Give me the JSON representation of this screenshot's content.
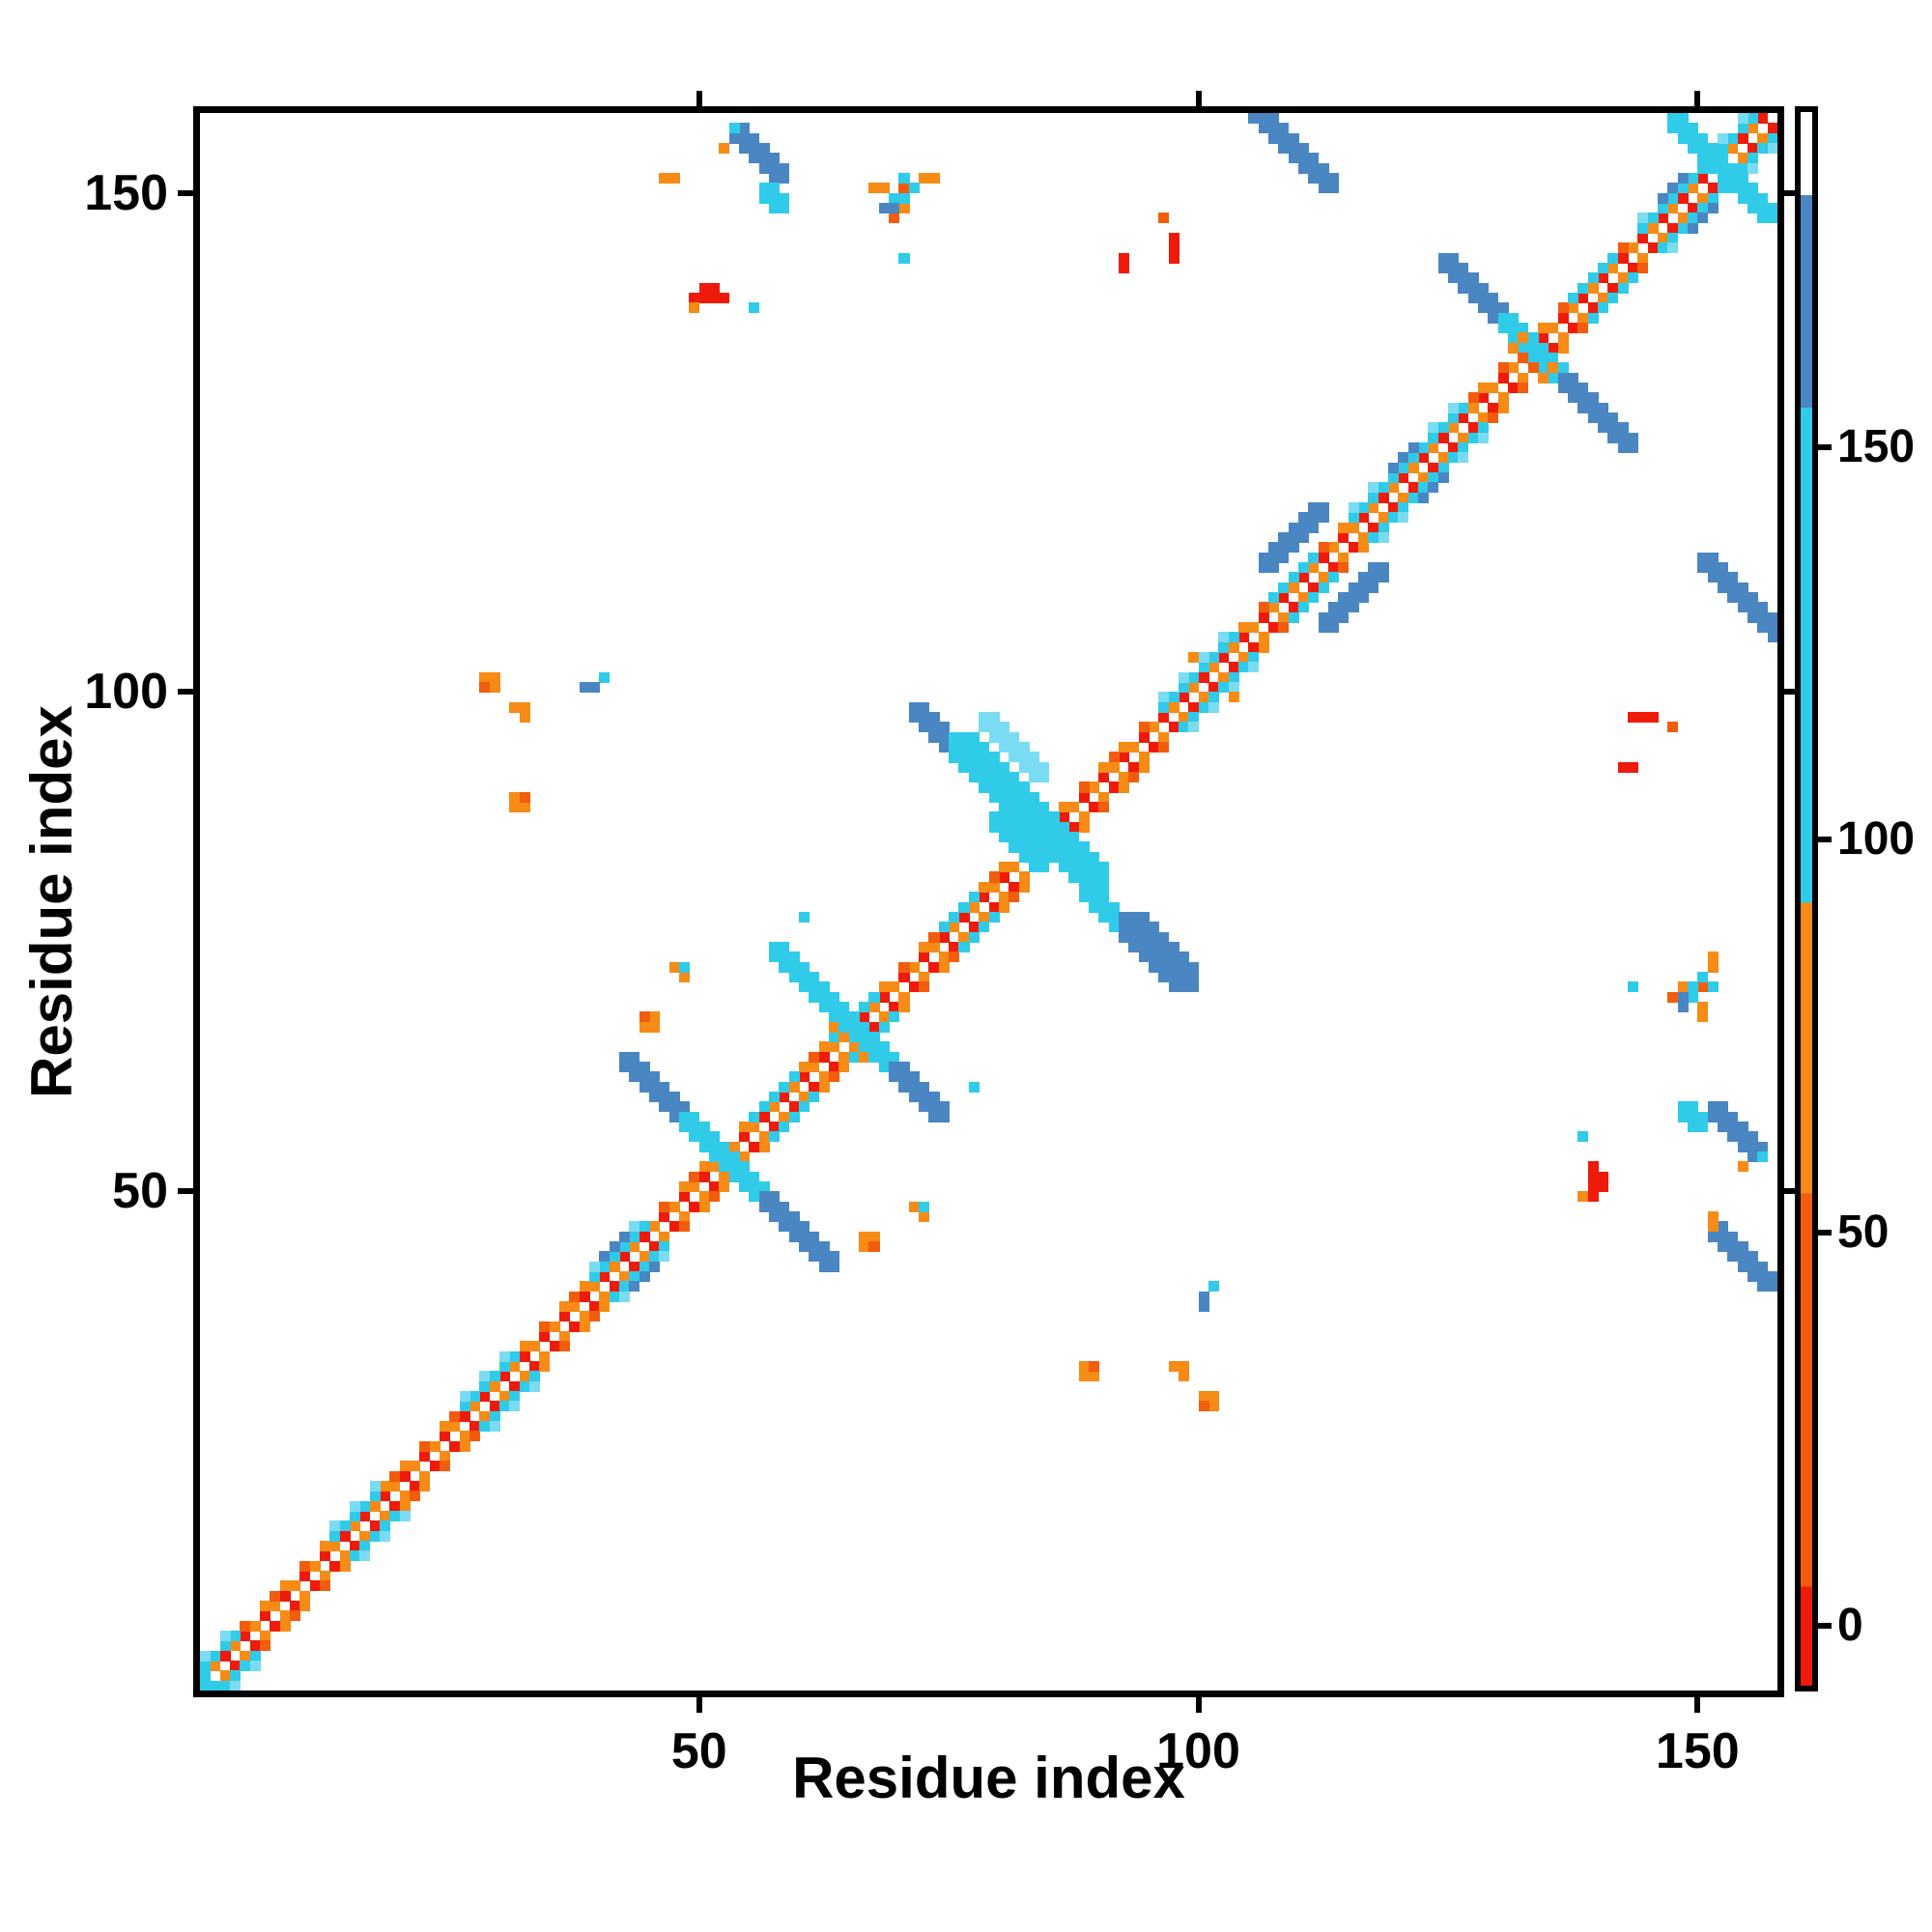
{
  "figure": {
    "xlabel": "Residue index",
    "ylabel": "Residue index"
  },
  "chart_data": {
    "type": "heatmap",
    "title": "",
    "xlabel": "Residue index",
    "ylabel": "Residue index",
    "n_residues": 158,
    "x_range": [
      0,
      158
    ],
    "y_range": [
      0,
      158
    ],
    "x_ticks": [
      50,
      100,
      150
    ],
    "y_ticks": [
      50,
      100,
      150
    ],
    "grid": false,
    "background": "#ffffff",
    "palette": {
      "red": "#ee1a0a",
      "dorange": "#f25c0d",
      "orange": "#f68b16",
      "cyan": "#2fcbe9",
      "lcyan": "#7adcf2",
      "steel": "#4a86c2",
      "white": "#ffffff"
    },
    "colorbar": {
      "min": -7.6,
      "max": 192.6,
      "ticks": [
        0,
        50,
        100,
        150
      ],
      "segments": [
        {
          "from": 182,
          "to": 192.6,
          "color": "white"
        },
        {
          "from": 155,
          "to": 182,
          "color": "steel"
        },
        {
          "from": 92,
          "to": 155,
          "color": "cyan"
        },
        {
          "from": 55,
          "to": 92,
          "color": "orange"
        },
        {
          "from": 5,
          "to": 55,
          "color": "dorange"
        },
        {
          "from": -7.6,
          "to": 5,
          "color": "red"
        }
      ]
    },
    "runs": [
      {
        "i0": 0,
        "j0": 1,
        "di": 2,
        "dj": 2,
        "n": 79,
        "w": 1,
        "c": "red",
        "sym": true
      },
      {
        "i0": 1,
        "j0": 2,
        "di": 2,
        "dj": 2,
        "n": 78,
        "w": 1,
        "c": "orange",
        "sym": true
      },
      {
        "i0": 0,
        "j0": 2,
        "di": 2,
        "dj": 2,
        "n": 78,
        "w": 1,
        "c": "orange",
        "sym": true
      },
      {
        "i0": 1,
        "j0": 3,
        "di": 3,
        "dj": 3,
        "n": 52,
        "w": 1,
        "c": "dorange",
        "sym": true
      },
      {
        "i0": 0,
        "j0": 2,
        "di": 1,
        "dj": 1,
        "n": 4,
        "w": 1,
        "c": "cyan",
        "sym": true
      },
      {
        "i0": 0,
        "j0": 3,
        "di": 2,
        "dj": 2,
        "n": 2,
        "w": 1,
        "c": "lcyan",
        "sym": true
      },
      {
        "i0": 13,
        "j0": 15,
        "di": 1,
        "dj": 1,
        "n": 5,
        "w": 1,
        "c": "cyan",
        "sym": true
      },
      {
        "i0": 13,
        "j0": 16,
        "di": 2,
        "dj": 2,
        "n": 3,
        "w": 1,
        "c": "lcyan",
        "sym": true
      },
      {
        "i0": 26,
        "j0": 28,
        "di": 1,
        "dj": 1,
        "n": 6,
        "w": 1,
        "c": "cyan",
        "sym": true
      },
      {
        "i0": 26,
        "j0": 29,
        "di": 2,
        "dj": 2,
        "n": 3,
        "w": 1,
        "c": "lcyan",
        "sym": true
      },
      {
        "i0": 39,
        "j0": 41,
        "di": 1,
        "dj": 1,
        "n": 6,
        "w": 1,
        "c": "cyan",
        "sym": true
      },
      {
        "i0": 39,
        "j0": 42,
        "di": 2,
        "dj": 2,
        "n": 3,
        "w": 1,
        "c": "lcyan",
        "sym": true
      },
      {
        "i0": 40,
        "j0": 43,
        "di": 1,
        "dj": 1,
        "n": 3,
        "w": 1,
        "c": "steel",
        "sym": true
      },
      {
        "i0": 55,
        "j0": 57,
        "di": 1,
        "dj": 1,
        "n": 5,
        "w": 1,
        "c": "cyan",
        "sym": true
      },
      {
        "i0": 63,
        "j0": 65,
        "di": 1,
        "dj": 1,
        "n": 5,
        "w": 1,
        "c": "cyan",
        "sym": true
      },
      {
        "i0": 74,
        "j0": 76,
        "di": 1,
        "dj": 1,
        "n": 4,
        "w": 1,
        "c": "cyan",
        "sym": true
      },
      {
        "i0": 96,
        "j0": 98,
        "di": 1,
        "dj": 1,
        "n": 8,
        "w": 1,
        "c": "cyan",
        "sym": true
      },
      {
        "i0": 96,
        "j0": 99,
        "di": 2,
        "dj": 2,
        "n": 4,
        "w": 1,
        "c": "lcyan",
        "sym": true
      },
      {
        "i0": 107,
        "j0": 109,
        "di": 1,
        "dj": 1,
        "n": 5,
        "w": 1,
        "c": "cyan",
        "sym": true
      },
      {
        "i0": 115,
        "j0": 117,
        "di": 1,
        "dj": 1,
        "n": 12,
        "w": 1,
        "c": "cyan",
        "sym": true
      },
      {
        "i0": 115,
        "j0": 118,
        "di": 2,
        "dj": 2,
        "n": 6,
        "w": 1,
        "c": "lcyan",
        "sym": true
      },
      {
        "i0": 119,
        "j0": 122,
        "di": 1,
        "dj": 1,
        "n": 3,
        "w": 1,
        "c": "steel",
        "sym": true
      },
      {
        "i0": 137,
        "j0": 139,
        "di": 1,
        "dj": 1,
        "n": 5,
        "w": 1,
        "c": "cyan",
        "sym": true
      },
      {
        "i0": 144,
        "j0": 146,
        "di": 1,
        "dj": 1,
        "n": 12,
        "w": 1,
        "c": "cyan",
        "sym": true
      },
      {
        "i0": 144,
        "j0": 147,
        "di": 2,
        "dj": 2,
        "n": 6,
        "w": 1,
        "c": "lcyan",
        "sym": true
      },
      {
        "i0": 146,
        "j0": 149,
        "di": 1,
        "dj": 1,
        "n": 3,
        "w": 1,
        "c": "steel",
        "sym": true
      },
      {
        "i0": 106,
        "j0": 112,
        "di": 1,
        "dj": 1,
        "n": 6,
        "w": 2,
        "c": "steel",
        "sym": true
      },
      {
        "i0": 42,
        "j0": 62,
        "di": 1,
        "dj": -1,
        "n": 6,
        "w": 2,
        "c": "steel",
        "sym": false
      },
      {
        "i0": 48,
        "j0": 56,
        "di": 1,
        "dj": -1,
        "n": 9,
        "w": 2,
        "c": "cyan",
        "sym": false
      },
      {
        "i0": 56,
        "j0": 48,
        "di": 1,
        "dj": -1,
        "n": 7,
        "w": 2,
        "c": "steel",
        "sym": false
      },
      {
        "i0": 57,
        "j0": 73,
        "di": 1,
        "dj": -1,
        "n": 7,
        "w": 2,
        "c": "cyan",
        "sym": false
      },
      {
        "i0": 63,
        "j0": 66,
        "di": 1,
        "dj": -1,
        "n": 4,
        "w": 1,
        "c": "orange",
        "sym": false
      },
      {
        "i0": 64,
        "j0": 66,
        "di": 1,
        "dj": -1,
        "n": 5,
        "w": 2,
        "c": "cyan",
        "sym": false
      },
      {
        "i0": 69,
        "j0": 61,
        "di": 1,
        "dj": -1,
        "n": 5,
        "w": 2,
        "c": "steel",
        "sym": false
      },
      {
        "i0": 71,
        "j0": 97,
        "di": 1,
        "dj": -1,
        "n": 5,
        "w": 2,
        "c": "steel",
        "sym": false
      },
      {
        "i0": 75,
        "j0": 93,
        "di": 1,
        "dj": -1,
        "n": 8,
        "w": 3,
        "c": "cyan",
        "sym": false
      },
      {
        "i0": 78,
        "j0": 96,
        "di": 1,
        "dj": -1,
        "n": 6,
        "w": 2,
        "c": "lcyan",
        "sym": false
      },
      {
        "i0": 79,
        "j0": 86,
        "di": 1,
        "dj": -1,
        "n": 5,
        "w": 2,
        "c": "cyan",
        "sym": false
      },
      {
        "i0": 82,
        "j0": 86,
        "di": 1,
        "dj": -1,
        "n": 7,
        "w": 3,
        "c": "cyan",
        "sym": false
      },
      {
        "i0": 88,
        "j0": 79,
        "di": 1,
        "dj": -1,
        "n": 5,
        "w": 2,
        "c": "cyan",
        "sym": false
      },
      {
        "i0": 92,
        "j0": 75,
        "di": 1,
        "dj": -1,
        "n": 6,
        "w": 3,
        "c": "steel",
        "sym": false
      },
      {
        "i0": 124,
        "j0": 142,
        "di": 1,
        "dj": -1,
        "n": 7,
        "w": 2,
        "c": "steel",
        "sym": false
      },
      {
        "i0": 130,
        "j0": 136,
        "di": 1,
        "dj": -1,
        "n": 4,
        "w": 2,
        "c": "cyan",
        "sym": false
      },
      {
        "i0": 133,
        "j0": 133,
        "di": 1,
        "dj": -1,
        "n": 4,
        "w": 2,
        "c": "cyan",
        "sym": false
      },
      {
        "i0": 136,
        "j0": 130,
        "di": 1,
        "dj": -1,
        "n": 7,
        "w": 2,
        "c": "steel",
        "sym": false
      },
      {
        "i0": 147,
        "j0": 156,
        "di": 1,
        "dj": -1,
        "n": 10,
        "w": 2,
        "c": "cyan",
        "sym": false
      },
      {
        "i0": 53,
        "j0": 155,
        "di": 1,
        "dj": -1,
        "n": 5,
        "w": 2,
        "c": "steel",
        "sym": true
      },
      {
        "i0": 56,
        "j0": 149,
        "di": 1,
        "dj": -1,
        "n": 2,
        "w": 2,
        "c": "cyan",
        "sym": true
      },
      {
        "i0": 105,
        "j0": 157,
        "di": 1,
        "dj": -1,
        "n": 8,
        "w": 2,
        "c": "steel",
        "sym": true
      },
      {
        "i0": 151,
        "j0": 45,
        "di": 1,
        "dj": -1,
        "n": 6,
        "w": 2,
        "c": "steel",
        "sym": false
      },
      {
        "i0": 49,
        "j0": 139,
        "di": 1,
        "dj": 0,
        "n": 4,
        "w": 1,
        "c": "red",
        "sym": true
      },
      {
        "i0": 50,
        "j0": 140,
        "di": 1,
        "dj": 0,
        "n": 2,
        "w": 1,
        "c": "red",
        "sym": true
      },
      {
        "i0": 143,
        "j0": 97,
        "di": 1,
        "dj": 0,
        "n": 3,
        "w": 1,
        "c": "red",
        "sym": true
      },
      {
        "i0": 142,
        "j0": 92,
        "di": 1,
        "dj": 0,
        "n": 2,
        "w": 1,
        "c": "red",
        "sym": true
      },
      {
        "i0": 46,
        "j0": 151,
        "di": 1,
        "dj": 0,
        "n": 2,
        "w": 1,
        "c": "orange",
        "sym": true
      }
    ],
    "scatter": [
      {
        "c": "orange",
        "sym": true,
        "cells": [
          [
            67,
            150
          ],
          [
            68,
            150
          ],
          [
            72,
            151
          ],
          [
            73,
            151
          ],
          [
            70,
            148
          ],
          [
            52,
            154
          ],
          [
            49,
            138
          ],
          [
            28,
            101
          ],
          [
            29,
            100
          ],
          [
            29,
            101
          ],
          [
            31,
            98
          ],
          [
            32,
            97
          ],
          [
            32,
            98
          ],
          [
            31,
            88
          ],
          [
            31,
            89
          ],
          [
            32,
            88
          ],
          [
            44,
            66
          ],
          [
            45,
            66
          ],
          [
            45,
            67
          ],
          [
            47,
            72
          ],
          [
            48,
            71
          ],
          [
            103,
            99
          ],
          [
            131,
            134
          ],
          [
            134,
            131
          ],
          [
            132,
            135
          ]
        ]
      },
      {
        "c": "dorange",
        "sym": true,
        "cells": [
          [
            70,
            150
          ],
          [
            69,
            147
          ],
          [
            28,
            100
          ],
          [
            32,
            89
          ],
          [
            44,
            67
          ],
          [
            132,
            133
          ],
          [
            133,
            132
          ],
          [
            147,
            96
          ]
        ]
      },
      {
        "c": "cyan",
        "sym": true,
        "cells": [
          [
            55,
            138
          ],
          [
            70,
            143
          ],
          [
            69,
            149
          ],
          [
            70,
            149
          ],
          [
            70,
            151
          ],
          [
            71,
            150
          ],
          [
            40,
            101
          ],
          [
            48,
            72
          ],
          [
            60,
            77
          ],
          [
            0,
            0
          ],
          [
            0,
            1
          ],
          [
            1,
            0
          ],
          [
            53,
            156
          ]
        ]
      },
      {
        "c": "steel",
        "sym": true,
        "cells": [
          [
            68,
            148
          ],
          [
            69,
            148
          ],
          [
            38,
            100
          ],
          [
            39,
            100
          ]
        ]
      }
    ]
  }
}
